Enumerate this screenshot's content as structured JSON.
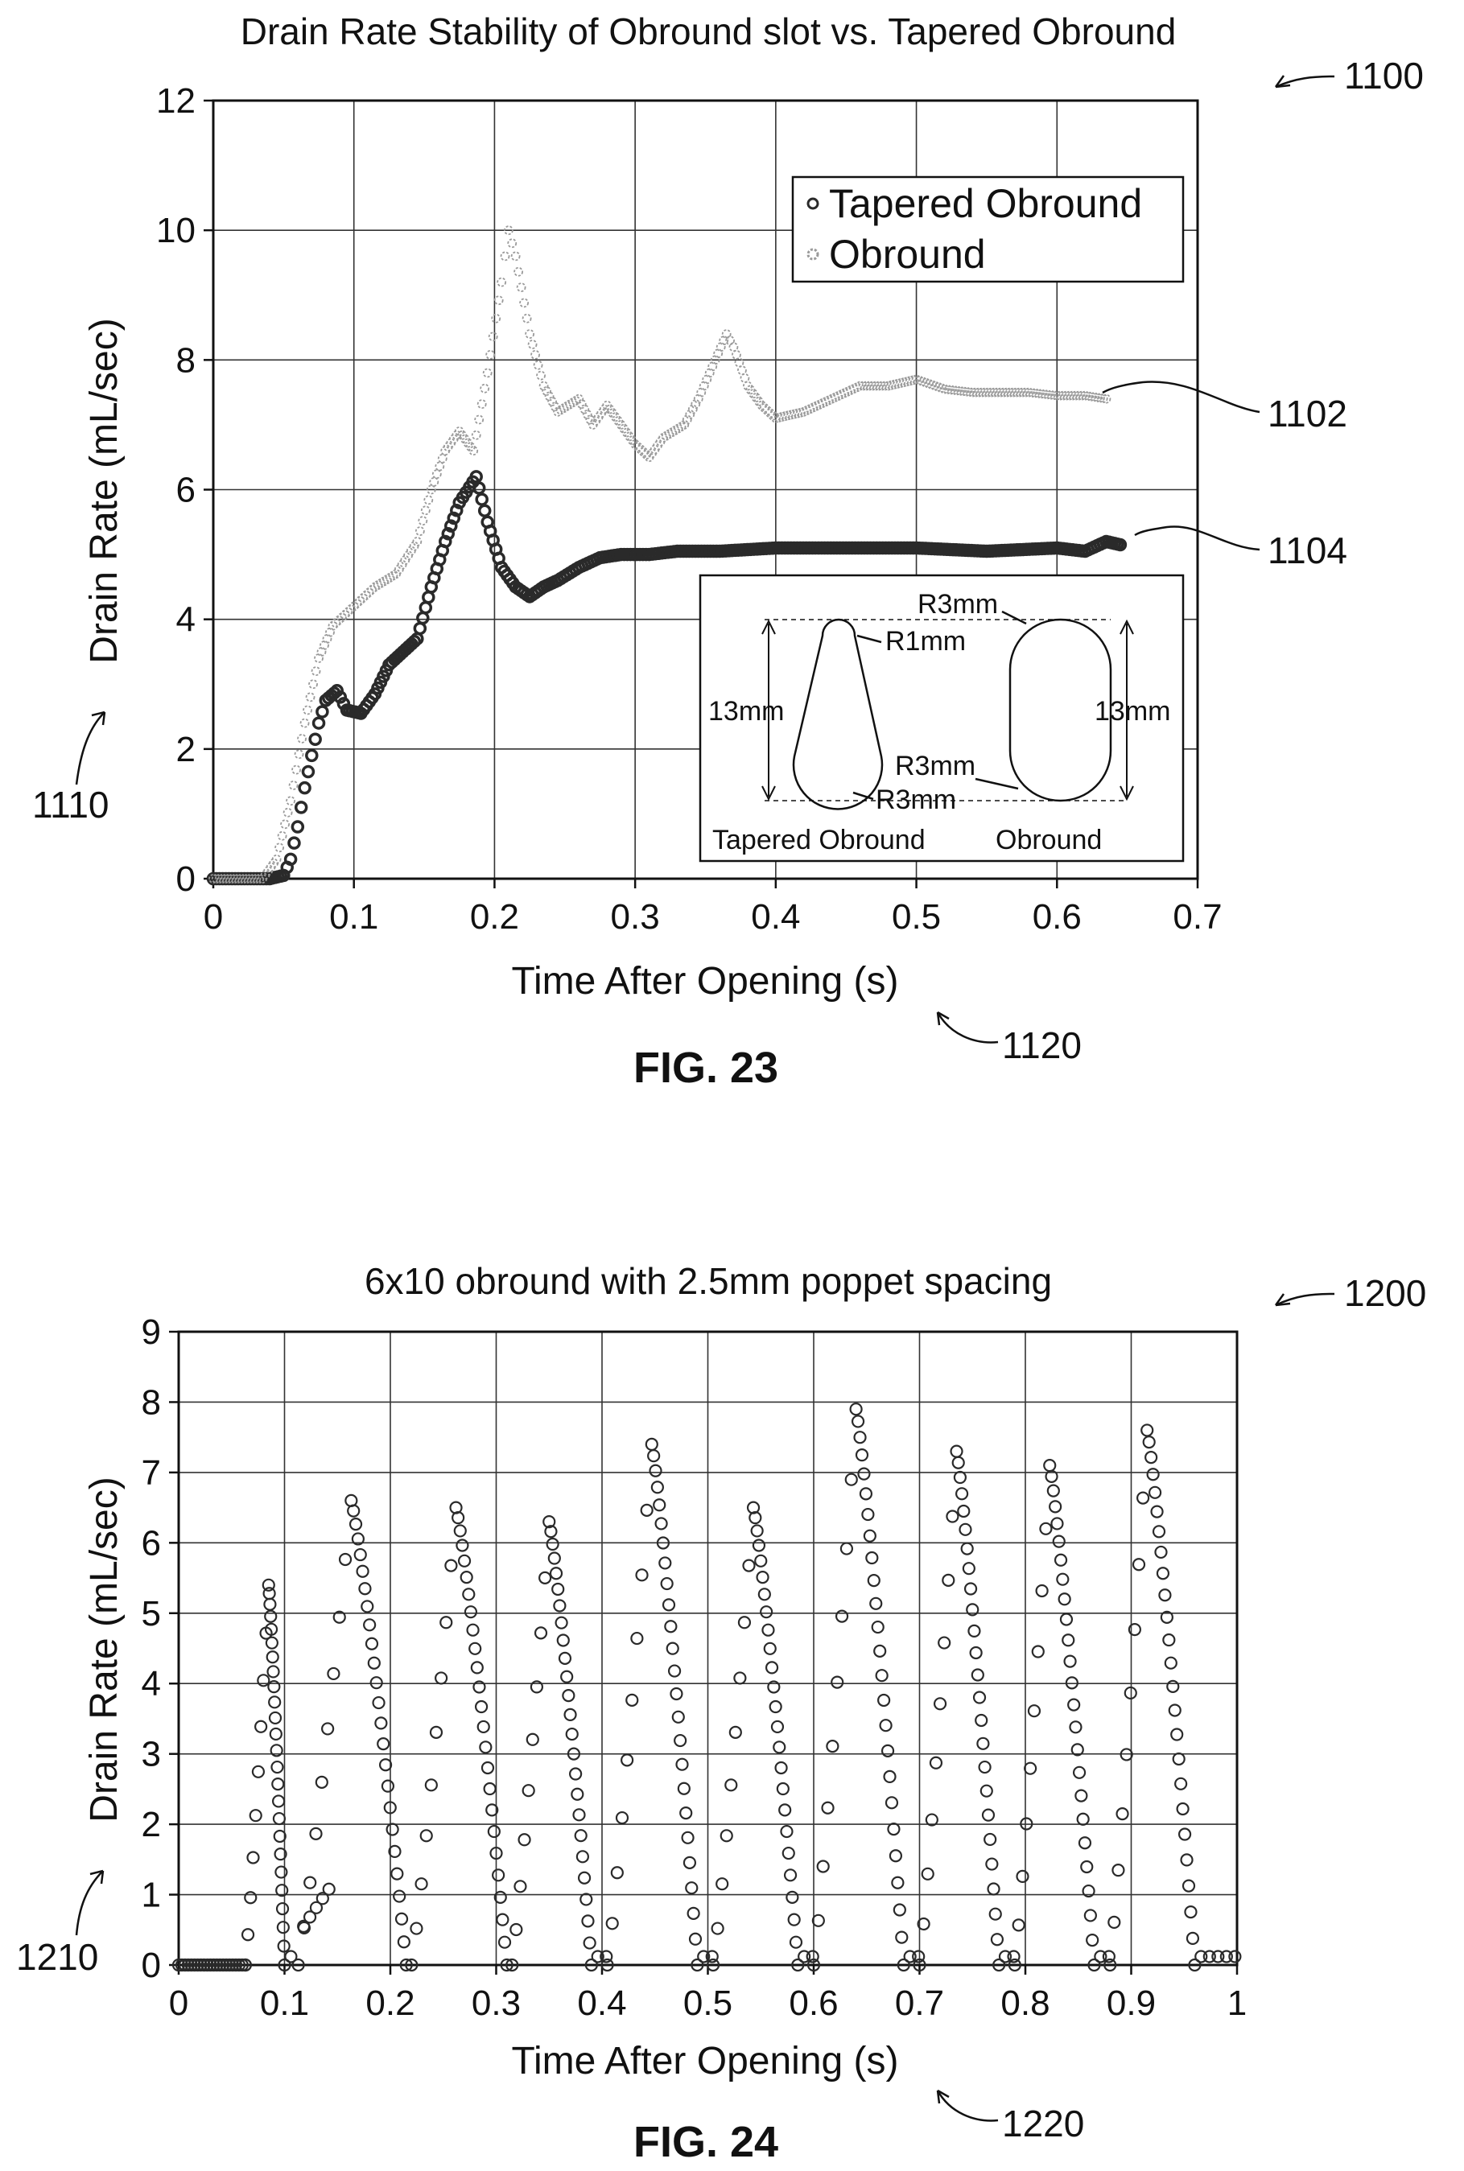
{
  "figures": [
    {
      "id": "fig23",
      "title": "Drain Rate Stability of Obround slot vs. Tapered Obround",
      "caption": "FIG. 23",
      "refs": {
        "figure": "1100",
        "series_top": "1102",
        "series_bottom": "1104",
        "y_axis": "1110",
        "x_axis": "1120"
      },
      "inset": {
        "shape_labels": [
          "Tapered Obround",
          "Obround"
        ],
        "dims": [
          "R3mm",
          "R1mm",
          "13mm",
          "R3mm",
          "R3mm",
          "13mm"
        ]
      }
    },
    {
      "id": "fig24",
      "title": "6x10 obround with 2.5mm poppet spacing",
      "caption": "FIG. 24",
      "refs": {
        "figure": "1200",
        "y_axis": "1210",
        "x_axis": "1220"
      }
    }
  ],
  "chart_data": [
    {
      "type": "scatter",
      "title": "Drain Rate Stability of Obround slot vs. Tapered Obround",
      "xlabel": "Time After Opening (s)",
      "ylabel": "Drain Rate (mL/sec)",
      "xlim": [
        0,
        0.7
      ],
      "ylim": [
        0,
        12
      ],
      "xticks": [
        "0",
        "0.1",
        "0.2",
        "0.3",
        "0.4",
        "0.5",
        "0.6",
        "0.7"
      ],
      "yticks": [
        "0",
        "2",
        "4",
        "6",
        "8",
        "10",
        "12"
      ],
      "grid": true,
      "legend": "top-right",
      "series": [
        {
          "name": "Tapered Obround",
          "color": "#2a2a2a",
          "points": [
            [
              0,
              0
            ],
            [
              0.04,
              0
            ],
            [
              0.05,
              0.05
            ],
            [
              0.055,
              0.3
            ],
            [
              0.06,
              0.8
            ],
            [
              0.065,
              1.4
            ],
            [
              0.07,
              1.9
            ],
            [
              0.075,
              2.4
            ],
            [
              0.08,
              2.75
            ],
            [
              0.088,
              2.9
            ],
            [
              0.095,
              2.6
            ],
            [
              0.105,
              2.55
            ],
            [
              0.115,
              2.85
            ],
            [
              0.125,
              3.3
            ],
            [
              0.135,
              3.5
            ],
            [
              0.145,
              3.7
            ],
            [
              0.155,
              4.5
            ],
            [
              0.165,
              5.2
            ],
            [
              0.175,
              5.8
            ],
            [
              0.187,
              6.2
            ],
            [
              0.195,
              5.5
            ],
            [
              0.205,
              4.8
            ],
            [
              0.215,
              4.5
            ],
            [
              0.225,
              4.35
            ],
            [
              0.235,
              4.5
            ],
            [
              0.245,
              4.6
            ],
            [
              0.26,
              4.8
            ],
            [
              0.275,
              4.95
            ],
            [
              0.29,
              5.0
            ],
            [
              0.31,
              5.0
            ],
            [
              0.33,
              5.05
            ],
            [
              0.36,
              5.05
            ],
            [
              0.4,
              5.1
            ],
            [
              0.45,
              5.1
            ],
            [
              0.5,
              5.1
            ],
            [
              0.55,
              5.05
            ],
            [
              0.6,
              5.1
            ],
            [
              0.62,
              5.05
            ],
            [
              0.635,
              5.2
            ],
            [
              0.645,
              5.15
            ]
          ]
        },
        {
          "name": "Obround",
          "color": "#9a9a9a",
          "points": [
            [
              0,
              0
            ],
            [
              0.035,
              0
            ],
            [
              0.045,
              0.3
            ],
            [
              0.055,
              1.2
            ],
            [
              0.065,
              2.4
            ],
            [
              0.075,
              3.4
            ],
            [
              0.085,
              3.9
            ],
            [
              0.1,
              4.2
            ],
            [
              0.115,
              4.5
            ],
            [
              0.13,
              4.7
            ],
            [
              0.145,
              5.2
            ],
            [
              0.155,
              6.0
            ],
            [
              0.165,
              6.6
            ],
            [
              0.175,
              6.9
            ],
            [
              0.185,
              6.6
            ],
            [
              0.195,
              7.8
            ],
            [
              0.205,
              9.2
            ],
            [
              0.21,
              10.0
            ],
            [
              0.215,
              9.6
            ],
            [
              0.225,
              8.4
            ],
            [
              0.235,
              7.6
            ],
            [
              0.245,
              7.2
            ],
            [
              0.26,
              7.4
            ],
            [
              0.27,
              7.0
            ],
            [
              0.28,
              7.3
            ],
            [
              0.29,
              7.0
            ],
            [
              0.3,
              6.7
            ],
            [
              0.31,
              6.5
            ],
            [
              0.32,
              6.8
            ],
            [
              0.335,
              7.0
            ],
            [
              0.345,
              7.4
            ],
            [
              0.355,
              7.9
            ],
            [
              0.365,
              8.4
            ],
            [
              0.37,
              8.2
            ],
            [
              0.38,
              7.6
            ],
            [
              0.39,
              7.3
            ],
            [
              0.4,
              7.1
            ],
            [
              0.42,
              7.2
            ],
            [
              0.44,
              7.4
            ],
            [
              0.46,
              7.6
            ],
            [
              0.48,
              7.6
            ],
            [
              0.5,
              7.7
            ],
            [
              0.52,
              7.55
            ],
            [
              0.54,
              7.5
            ],
            [
              0.56,
              7.5
            ],
            [
              0.58,
              7.5
            ],
            [
              0.6,
              7.45
            ],
            [
              0.62,
              7.45
            ],
            [
              0.635,
              7.4
            ]
          ]
        }
      ]
    },
    {
      "type": "scatter",
      "title": "6x10 obround with 2.5mm poppet spacing",
      "xlabel": "Time After Opening (s)",
      "ylabel": "Drain Rate (mL/sec)",
      "xlim": [
        0,
        1
      ],
      "ylim": [
        0,
        9
      ],
      "xticks": [
        "0",
        "0.1",
        "0.2",
        "0.3",
        "0.4",
        "0.5",
        "0.6",
        "0.7",
        "0.8",
        "0.9",
        "1"
      ],
      "yticks": [
        "0",
        "1",
        "2",
        "3",
        "4",
        "5",
        "6",
        "7",
        "8",
        "9"
      ],
      "grid": true,
      "series": [
        {
          "color": "#2a2a2a",
          "baseline_until": 0.065,
          "peaks": [
            {
              "start": 0.063,
              "peak_t": 0.085,
              "peak": 5.4,
              "end": 0.1
            },
            {
              "start": 0.113,
              "peak_t": 0.163,
              "peak": 6.6,
              "end": 0.215
            },
            {
              "start": 0.22,
              "peak_t": 0.262,
              "peak": 6.5,
              "end": 0.31
            },
            {
              "start": 0.315,
              "peak_t": 0.35,
              "peak": 6.3,
              "end": 0.39
            },
            {
              "start": 0.405,
              "peak_t": 0.447,
              "peak": 7.4,
              "end": 0.49
            },
            {
              "start": 0.505,
              "peak_t": 0.543,
              "peak": 6.5,
              "end": 0.585
            },
            {
              "start": 0.6,
              "peak_t": 0.64,
              "peak": 7.9,
              "end": 0.685
            },
            {
              "start": 0.7,
              "peak_t": 0.735,
              "peak": 7.3,
              "end": 0.775
            },
            {
              "start": 0.79,
              "peak_t": 0.823,
              "peak": 7.1,
              "end": 0.865
            },
            {
              "start": 0.88,
              "peak_t": 0.915,
              "peak": 7.6,
              "end": 0.96
            }
          ],
          "early_shoulder": [
            [
              0.13,
              1.1
            ]
          ]
        }
      ]
    }
  ]
}
